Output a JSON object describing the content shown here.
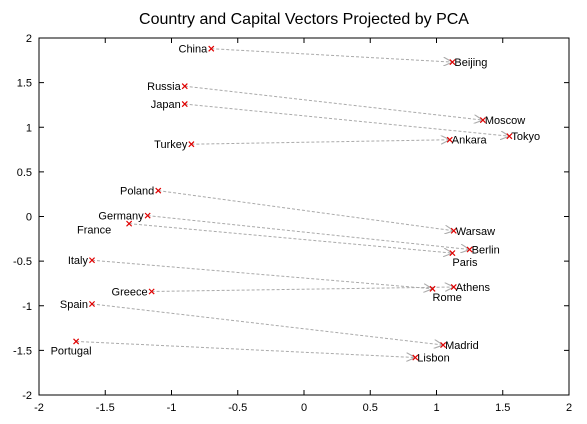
{
  "chart_data": {
    "type": "scatter",
    "title": "Country and Capital Vectors Projected by PCA",
    "xlabel": "",
    "ylabel": "",
    "xlim": [
      -2,
      2
    ],
    "ylim": [
      -2,
      2
    ],
    "x_ticks": [
      "-2",
      "-1.5",
      "-1",
      "-0.5",
      "0",
      "0.5",
      "1",
      "1.5",
      "2"
    ],
    "y_ticks": [
      "2",
      "1.5",
      "1",
      "0.5",
      "0",
      "-0.5",
      "-1",
      "-1.5",
      "-2"
    ],
    "grid": false,
    "marker_color": "#e00000",
    "arrow_color": "#aaaaaa",
    "points": [
      {
        "label": "China",
        "x": -0.7,
        "y": 1.88
      },
      {
        "label": "Beijing",
        "x": 1.12,
        "y": 1.73
      },
      {
        "label": "Russia",
        "x": -0.9,
        "y": 1.46
      },
      {
        "label": "Moscow",
        "x": 1.35,
        "y": 1.08
      },
      {
        "label": "Japan",
        "x": -0.9,
        "y": 1.26
      },
      {
        "label": "Tokyo",
        "x": 1.55,
        "y": 0.9
      },
      {
        "label": "Turkey",
        "x": -0.85,
        "y": 0.81
      },
      {
        "label": "Ankara",
        "x": 1.1,
        "y": 0.86
      },
      {
        "label": "Poland",
        "x": -1.1,
        "y": 0.29
      },
      {
        "label": "Warsaw",
        "x": 1.13,
        "y": -0.16
      },
      {
        "label": "Germany",
        "x": -1.18,
        "y": 0.01
      },
      {
        "label": "Berlin",
        "x": 1.25,
        "y": -0.37
      },
      {
        "label": "France",
        "x": -1.32,
        "y": -0.08
      },
      {
        "label": "Paris",
        "x": 1.12,
        "y": -0.41
      },
      {
        "label": "Italy",
        "x": -1.6,
        "y": -0.49
      },
      {
        "label": "Rome",
        "x": 0.97,
        "y": -0.81
      },
      {
        "label": "Greece",
        "x": -1.15,
        "y": -0.84
      },
      {
        "label": "Athens",
        "x": 1.13,
        "y": -0.79
      },
      {
        "label": "Spain",
        "x": -1.6,
        "y": -0.98
      },
      {
        "label": "Madrid",
        "x": 1.05,
        "y": -1.44
      },
      {
        "label": "Portugal",
        "x": -1.72,
        "y": -1.4
      },
      {
        "label": "Lisbon",
        "x": 0.84,
        "y": -1.58
      }
    ],
    "arrows": [
      {
        "from": "China",
        "to": "Beijing"
      },
      {
        "from": "Russia",
        "to": "Moscow"
      },
      {
        "from": "Japan",
        "to": "Tokyo"
      },
      {
        "from": "Turkey",
        "to": "Ankara"
      },
      {
        "from": "Poland",
        "to": "Warsaw"
      },
      {
        "from": "Germany",
        "to": "Berlin"
      },
      {
        "from": "France",
        "to": "Paris"
      },
      {
        "from": "Italy",
        "to": "Rome"
      },
      {
        "from": "Greece",
        "to": "Athens"
      },
      {
        "from": "Spain",
        "to": "Madrid"
      },
      {
        "from": "Portugal",
        "to": "Lisbon"
      }
    ]
  }
}
